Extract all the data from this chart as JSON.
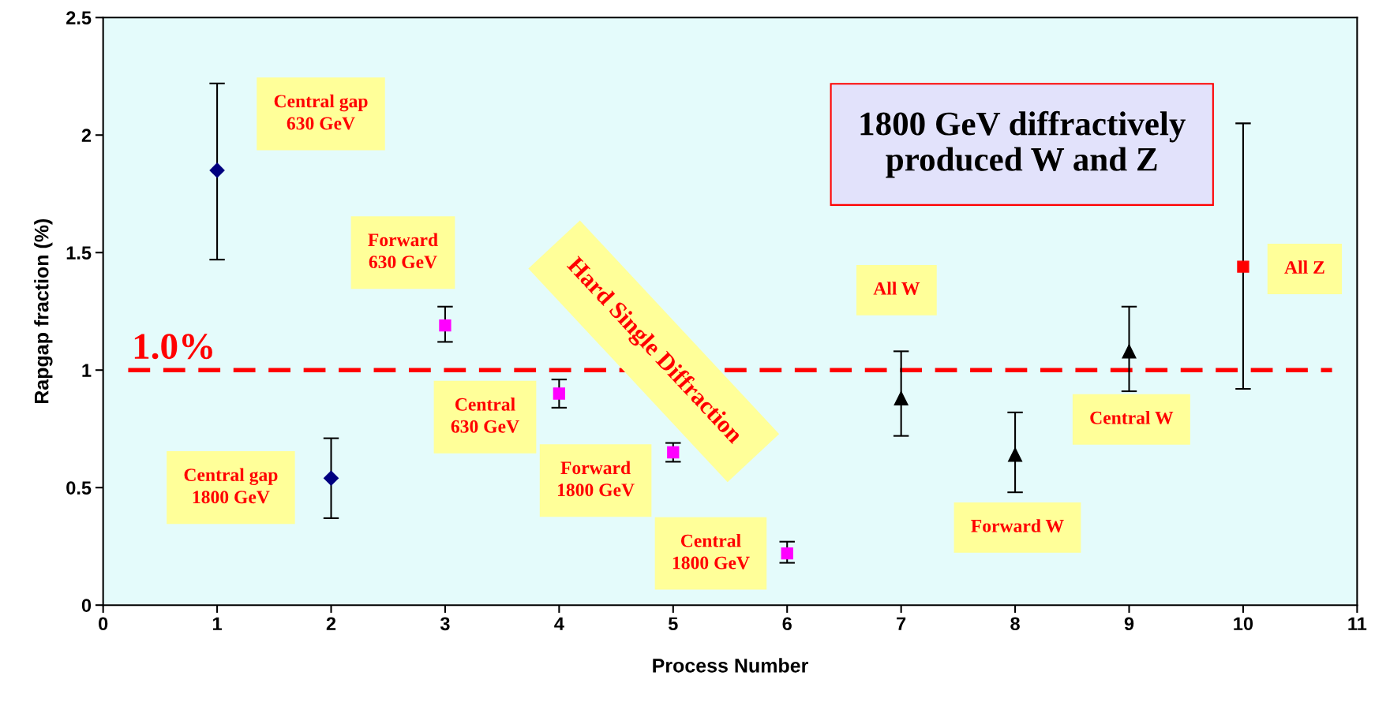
{
  "chart_data": {
    "type": "scatter",
    "title": "1800 GeV diffractively\nproduced W and Z",
    "xlabel": "Process Number",
    "ylabel": "Rapgap fraction (%)",
    "xlim": [
      0,
      11
    ],
    "xticks": [
      0,
      1,
      2,
      3,
      4,
      5,
      6,
      7,
      8,
      9,
      10,
      11
    ],
    "ylim": [
      0,
      2.5
    ],
    "yticks": [
      0,
      0.5,
      1,
      1.5,
      2,
      2.5
    ],
    "grid": false,
    "legend": false,
    "series": [
      {
        "color": "#000080",
        "marker": "diamond",
        "x": [
          1,
          2
        ],
        "values": [
          1.85,
          0.54
        ],
        "errors": [
          [
            1.47,
            2.22
          ],
          [
            0.37,
            0.71
          ]
        ]
      },
      {
        "color": "#ff00ff",
        "marker": "square",
        "x": [
          3,
          4,
          5,
          6
        ],
        "values": [
          1.19,
          0.9,
          0.65,
          0.22
        ],
        "errors": [
          [
            1.12,
            1.27
          ],
          [
            0.84,
            0.96
          ],
          [
            0.61,
            0.69
          ],
          [
            0.18,
            0.27
          ]
        ]
      },
      {
        "color": "#000000",
        "marker": "triangle",
        "x": [
          7,
          8,
          9
        ],
        "values": [
          0.88,
          0.64,
          1.08
        ],
        "errors": [
          [
            0.72,
            1.08
          ],
          [
            0.48,
            0.82
          ],
          [
            0.91,
            1.27
          ]
        ]
      },
      {
        "color": "#ff0000",
        "marker": "square",
        "x": [
          10
        ],
        "values": [
          1.44
        ],
        "errors": [
          [
            0.92,
            2.05
          ]
        ]
      }
    ],
    "ref_lines": [
      {
        "axis": "y",
        "value": 1,
        "label": "1.0%",
        "color": "#ff0000",
        "line_style": "dashed"
      }
    ],
    "annotations": [
      "Central gap\n630 GeV",
      "Central gap\n1800 GeV",
      "Forward\n630 GeV",
      "Central\n630 GeV",
      "Forward\n1800 GeV",
      "Central\n1800 GeV",
      "All W",
      "Forward W",
      "Central W",
      "All Z",
      "Hard Single Diffraction"
    ]
  }
}
